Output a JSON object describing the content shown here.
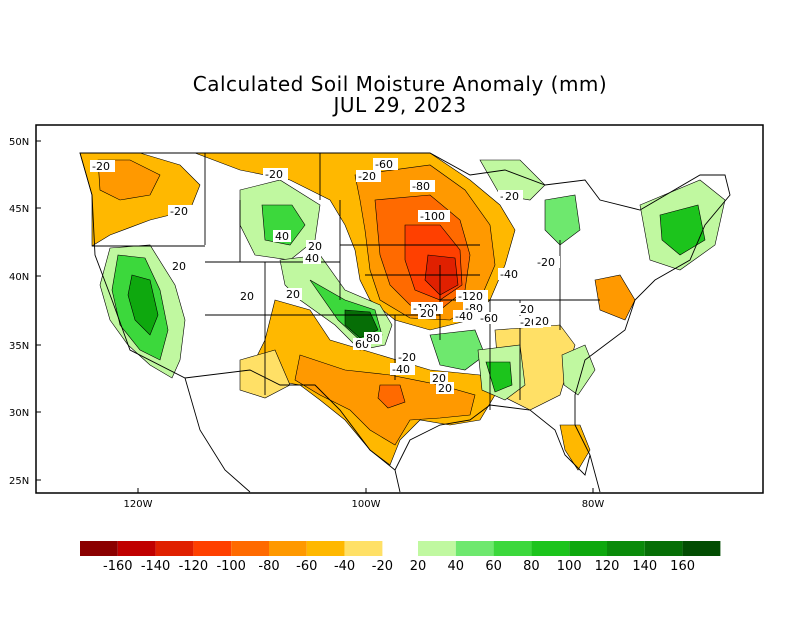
{
  "title_line1": "Calculated Soil Moisture Anomaly (mm)",
  "title_line2": "JUL 29, 2023",
  "lat_labels": [
    "50N",
    "45N",
    "40N",
    "35N",
    "30N",
    "25N"
  ],
  "lon_labels": [
    "120W",
    "100W",
    "80W"
  ],
  "contour_labels": [
    "-20",
    "-20",
    "-20",
    "-60",
    "-20",
    "-80",
    "-100",
    "-40",
    "-120",
    "-80",
    "-60",
    "-100",
    "-40",
    "-20",
    "-20",
    "-40",
    "-20",
    "-20",
    "20",
    "40",
    "20",
    "20",
    "20",
    "40",
    "60",
    "80",
    "20",
    "20",
    "20",
    "20",
    "20",
    "20"
  ],
  "legend": {
    "negative_labels": [
      "-160",
      "-140",
      "-120",
      "-100",
      "-80",
      "-60",
      "-40",
      "-20"
    ],
    "positive_labels": [
      "20",
      "40",
      "60",
      "80",
      "100",
      "120",
      "140",
      "160"
    ],
    "negative_colors": [
      "#8b0000",
      "#c00000",
      "#e02000",
      "#ff4000",
      "#ff6a00",
      "#ff9900",
      "#ffb800",
      "#ffe066"
    ],
    "positive_colors": [
      "#c0f8a0",
      "#6ee86e",
      "#3cd83c",
      "#1cc41c",
      "#0ea80e",
      "#0a8a0a",
      "#066e06",
      "#034d03"
    ]
  }
}
